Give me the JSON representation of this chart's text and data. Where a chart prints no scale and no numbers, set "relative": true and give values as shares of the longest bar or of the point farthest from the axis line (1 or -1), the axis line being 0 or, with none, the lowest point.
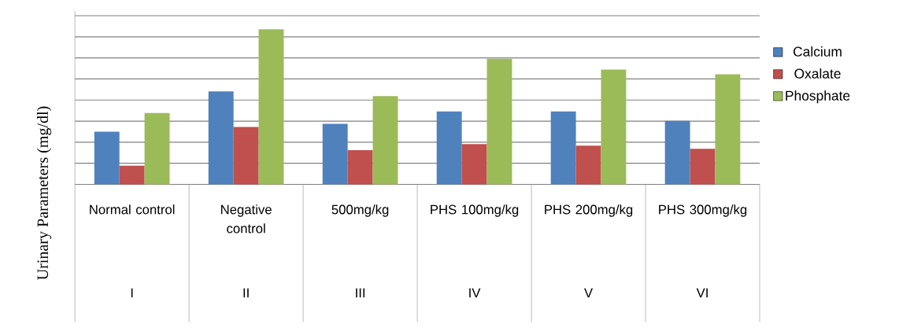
{
  "chart_data": {
    "type": "bar",
    "ylabel": "Urinary Parameters (mg/dl)",
    "relative": true,
    "grid": "y",
    "legend": "right",
    "categories": [
      "Normal control",
      "Negative control",
      "500mg/kg",
      "PHS 100mg/kg",
      "PHS 200mg/kg",
      "PHS 300mg/kg"
    ],
    "annotations": [
      "I",
      "II",
      "III",
      "IV",
      "V",
      "VI"
    ],
    "series": [
      {
        "name": "Calcium",
        "color": "#4f81bd",
        "values": [
          0.34,
          0.6,
          0.39,
          0.47,
          0.47,
          0.41
        ]
      },
      {
        "name": "Oxalate",
        "color": "#c0504d",
        "values": [
          0.12,
          0.37,
          0.22,
          0.26,
          0.25,
          0.23
        ]
      },
      {
        "name": "Phosphate",
        "color": "#9bbb59",
        "values": [
          0.46,
          1.0,
          0.57,
          0.81,
          0.74,
          0.71
        ]
      }
    ]
  }
}
